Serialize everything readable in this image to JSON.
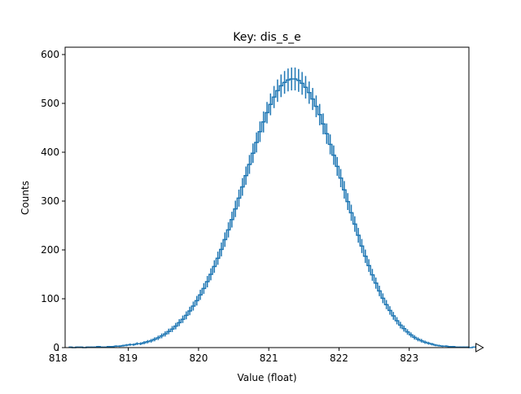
{
  "chart_data": {
    "type": "histogram",
    "title": "Key: dis_s_e",
    "xlabel": "Value (float)",
    "ylabel": "Counts",
    "xlim": [
      818.1,
      823.85
    ],
    "ylim": [
      0,
      615
    ],
    "x_ticks": [
      818,
      819,
      820,
      821,
      822,
      823
    ],
    "y_ticks": [
      0,
      100,
      200,
      300,
      400,
      500,
      600
    ],
    "grid": false,
    "legend": "none",
    "series": [
      {
        "name": "dis_s_e",
        "color": "#1f77b4",
        "bin_start": 818.15,
        "bin_width": 0.05,
        "counts": [
          1,
          0,
          1,
          1,
          0,
          1,
          1,
          1,
          2,
          1,
          1,
          2,
          2,
          3,
          3,
          4,
          5,
          6,
          6,
          8,
          8,
          10,
          12,
          14,
          17,
          20,
          24,
          28,
          33,
          38,
          44,
          51,
          58,
          66,
          75,
          85,
          96,
          108,
          121,
          135,
          150,
          166,
          183,
          201,
          221,
          241,
          262,
          284,
          306,
          329,
          352,
          375,
          398,
          420,
          442,
          462,
          481,
          498,
          513,
          526,
          536,
          543,
          548,
          550,
          550,
          547,
          541,
          533,
          522,
          509,
          494,
          477,
          458,
          438,
          416,
          394,
          371,
          347,
          323,
          299,
          276,
          253,
          230,
          208,
          187,
          168,
          149,
          132,
          116,
          101,
          88,
          76,
          65,
          55,
          46,
          39,
          32,
          26,
          21,
          17,
          14,
          11,
          9,
          7,
          5,
          4,
          3,
          3,
          2,
          2,
          1,
          1,
          1,
          1,
          0,
          1
        ]
      }
    ],
    "end_marker": "triangle-right"
  }
}
